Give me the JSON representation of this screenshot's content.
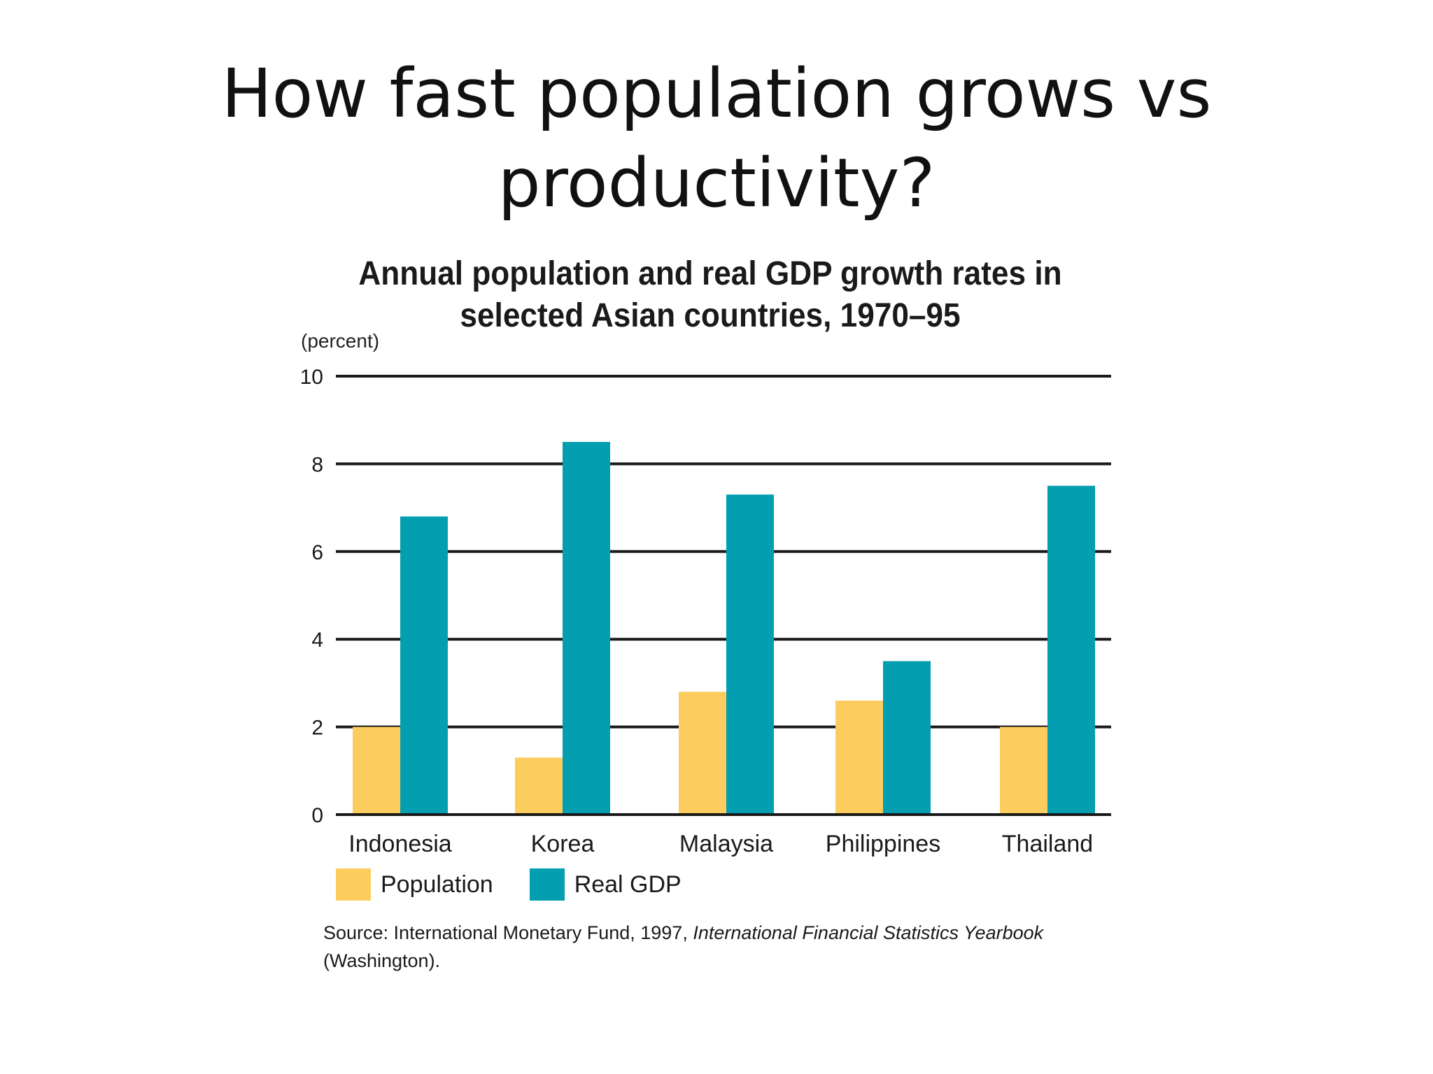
{
  "slide": {
    "title_line1": "How fast population grows vs",
    "title_line2": "productivity?"
  },
  "chart_data": {
    "type": "bar",
    "title_line1": "Annual population and real GDP growth rates in",
    "title_line2": "selected Asian countries, 1970–95",
    "ylabel": "(percent)",
    "categories": [
      "Indonesia",
      "Korea",
      "Malaysia",
      "Philippines",
      "Thailand"
    ],
    "series": [
      {
        "name": "Population",
        "values": [
          2.0,
          1.3,
          2.8,
          2.6,
          2.0
        ],
        "color": "#fdcc5e"
      },
      {
        "name": "Real GDP",
        "values": [
          6.8,
          8.5,
          7.3,
          3.5,
          7.5
        ],
        "color": "#039eaf"
      }
    ],
    "ylim": [
      0,
      10
    ],
    "yticks": [
      0,
      2,
      4,
      6,
      8,
      10
    ],
    "grid": true,
    "legend_position": "bottom-left"
  },
  "source": {
    "prefix": "Source: International Monetary Fund, 1997, ",
    "title": "International Financial Statistics Yearbook",
    "suffix": "(Washington)."
  }
}
